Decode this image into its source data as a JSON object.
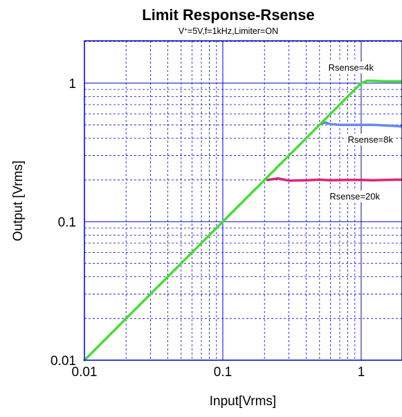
{
  "chart_data": {
    "type": "line",
    "title": "Limit Response-Rsense",
    "subtitle_main": "V",
    "subtitle_sup": "+",
    "subtitle_rest": "=5V,f=1kHz,Limiter=ON",
    "xlabel": "Input[Vrms]",
    "ylabel": "Output [Vrms]",
    "xscale": "log",
    "yscale": "log",
    "xlim": [
      0.01,
      2.2
    ],
    "ylim": [
      0.01,
      2.2
    ],
    "x_ticks": [
      {
        "value": 0.01,
        "label": "0.01"
      },
      {
        "value": 0.1,
        "label": "0.1"
      },
      {
        "value": 1,
        "label": "1"
      }
    ],
    "y_ticks": [
      {
        "value": 0.01,
        "label": "0.01"
      },
      {
        "value": 0.1,
        "label": "0.1"
      },
      {
        "value": 1,
        "label": "1"
      }
    ],
    "grid": true,
    "colors": {
      "frame": "#0000bb",
      "grid": "#0000cc"
    },
    "series": [
      {
        "name": "Rsense=20k",
        "color": "#e0207a",
        "x": [
          0.21,
          0.25,
          0.3,
          0.4,
          0.5,
          0.6,
          0.8,
          1.0,
          1.2,
          1.5,
          1.8,
          2.2
        ],
        "y": [
          0.2,
          0.205,
          0.198,
          0.199,
          0.201,
          0.199,
          0.2,
          0.2,
          0.199,
          0.2,
          0.201,
          0.201
        ]
      },
      {
        "name": "Rsense=8k",
        "color": "#6688ee",
        "x": [
          0.52,
          0.55,
          0.6,
          0.7,
          0.8,
          1.0,
          1.2,
          1.5,
          1.8,
          2.2
        ],
        "y": [
          0.51,
          0.52,
          0.505,
          0.5,
          0.5,
          0.5,
          0.5,
          0.495,
          0.49,
          0.48
        ]
      },
      {
        "name": "Rsense=4k",
        "color": "#44dd33",
        "x": [
          0.01,
          0.05,
          0.1,
          0.2,
          0.5,
          1.0,
          1.1,
          1.2,
          1.5,
          2.2
        ],
        "y": [
          0.01,
          0.05,
          0.1,
          0.2,
          0.5,
          1.0,
          1.04,
          1.04,
          1.03,
          1.03
        ]
      }
    ]
  }
}
